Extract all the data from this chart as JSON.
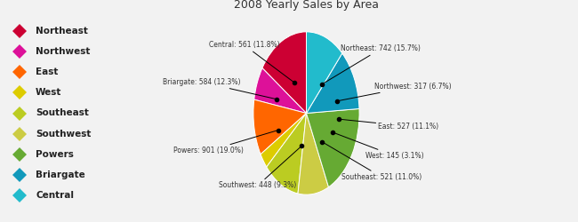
{
  "title": "2008 Yearly Sales by Area",
  "areas": [
    "Northeast",
    "Northwest",
    "East",
    "West",
    "Southeast",
    "Southwest",
    "Powers",
    "Briargate",
    "Central"
  ],
  "values": [
    742,
    317,
    527,
    145,
    521,
    448,
    901,
    584,
    561
  ],
  "percentages": [
    15.7,
    6.7,
    11.1,
    3.1,
    11.0,
    9.3,
    19.0,
    12.3,
    11.8
  ],
  "colors": [
    "#cc0033",
    "#dd1199",
    "#ff6600",
    "#ddcc00",
    "#bbcc22",
    "#cccc44",
    "#66aa33",
    "#1199bb",
    "#22bbcc"
  ],
  "legend_colors": [
    "#cc0033",
    "#dd1199",
    "#ff6600",
    "#ddcc00",
    "#bbcc22",
    "#cccc44",
    "#66aa33",
    "#1199bb",
    "#22bbcc"
  ],
  "background_color": "#f2f2f2",
  "startangle": 90,
  "figsize": [
    6.5,
    2.5
  ],
  "dpi": 100
}
